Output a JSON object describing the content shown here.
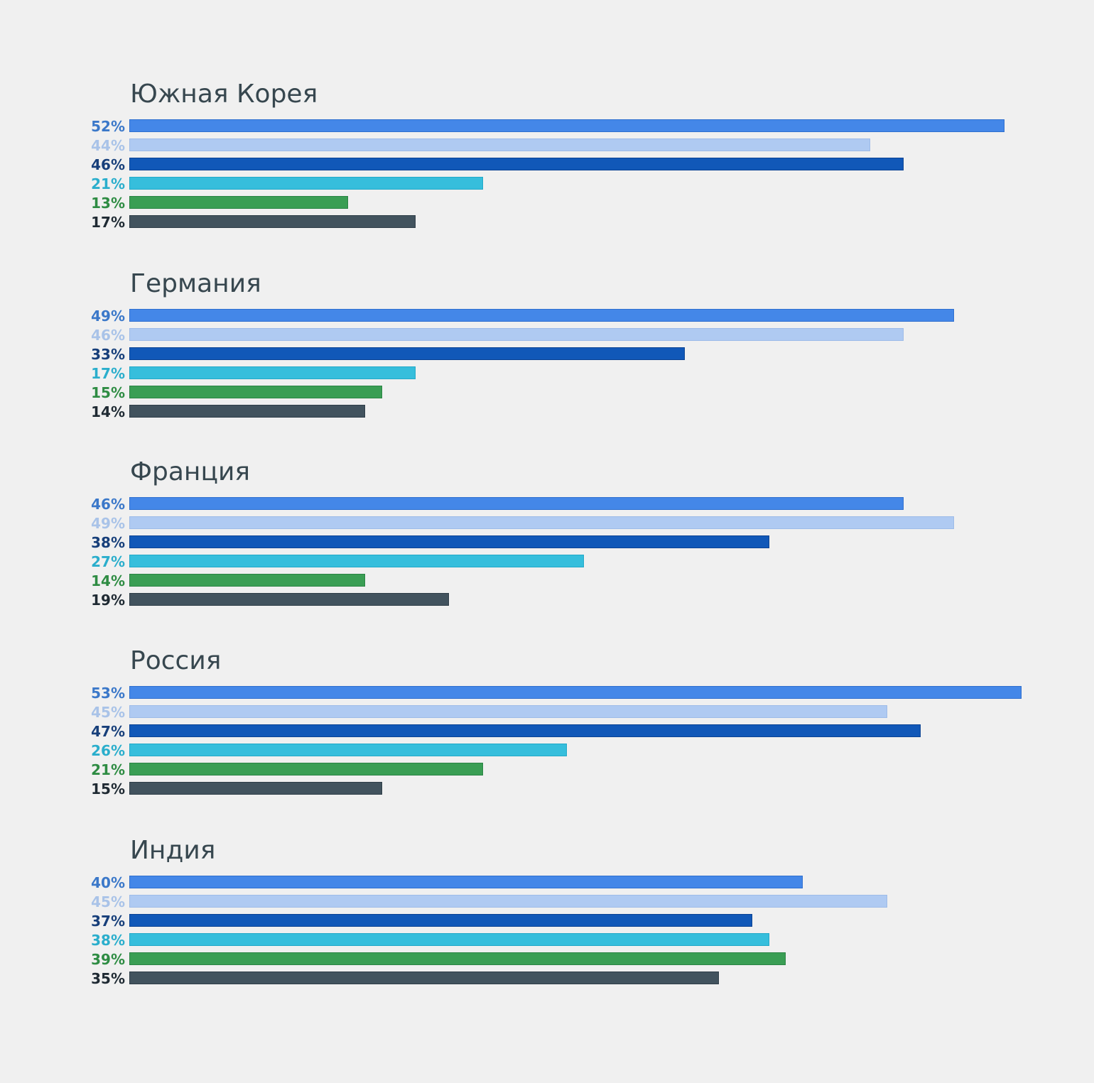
{
  "chart_data": {
    "type": "bar",
    "orientation": "horizontal",
    "value_unit": "%",
    "xlim": [
      0,
      53
    ],
    "grid": false,
    "legend": "none",
    "groups": [
      {
        "name": "Южная Корея",
        "values": [
          52,
          44,
          46,
          21,
          13,
          17
        ],
        "labels": [
          "52%",
          "44%",
          "46%",
          "21%",
          "13%",
          "17%"
        ]
      },
      {
        "name": "Германия",
        "values": [
          49,
          46,
          33,
          17,
          15,
          14
        ],
        "labels": [
          "49%",
          "46%",
          "33%",
          "17%",
          "15%",
          "14%"
        ]
      },
      {
        "name": "Франция",
        "values": [
          46,
          49,
          38,
          27,
          14,
          19
        ],
        "labels": [
          "46%",
          "49%",
          "38%",
          "27%",
          "14%",
          "19%"
        ]
      },
      {
        "name": "Россия",
        "values": [
          53,
          45,
          47,
          26,
          21,
          15
        ],
        "labels": [
          "53%",
          "45%",
          "47%",
          "26%",
          "21%",
          "15%"
        ]
      },
      {
        "name": "Индия",
        "values": [
          40,
          45,
          37,
          38,
          39,
          35
        ],
        "labels": [
          "40%",
          "45%",
          "37%",
          "38%",
          "39%",
          "35%"
        ]
      }
    ],
    "bar_colors": [
      "#4487e8",
      "#afcaf2",
      "#1158b8",
      "#36bedc",
      "#3a9e54",
      "#42535e"
    ],
    "label_colors": [
      "#3b78c9",
      "#a9c3e8",
      "#173f7a",
      "#2aaecc",
      "#2e8c43",
      "#1f2a33"
    ],
    "bar_borders": [
      "#2f6fcf",
      "#9dbbe8",
      "#0b4393",
      "#22a9c8",
      "#2a8444",
      "#2f3e48"
    ]
  }
}
